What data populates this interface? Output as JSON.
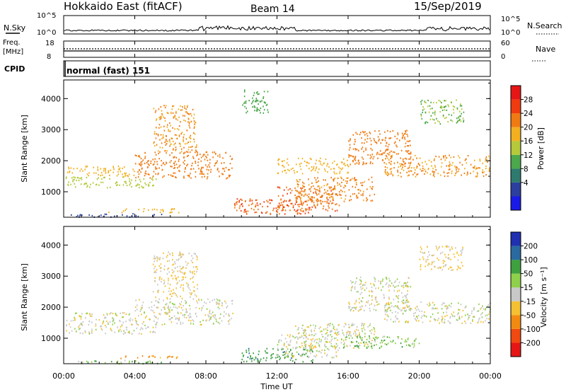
{
  "header": {
    "station": "Hokkaido East (fitACF)",
    "beam": "Beam 14",
    "date": "15/Sep/2019"
  },
  "nsky_panel": {
    "label": "N.Sky",
    "right_label": "N.Search",
    "left_ticks": [
      "10^5",
      "10^0"
    ],
    "right_ticks": [
      "10^5",
      "10^0"
    ]
  },
  "freq_panel": {
    "label_top": "Freq.",
    "label_unit": "[MHz]",
    "left_ticks": [
      "18",
      "8"
    ],
    "right_ticks": [
      "60",
      "0"
    ],
    "right_label": "Nave"
  },
  "cpid_panel": {
    "label": "CPID",
    "mode_text": "normal (fast) 151"
  },
  "power_panel": {
    "ylabel": "Slant Range [km]",
    "colorbar_label": "Power [dB]",
    "colorbar_ticks": [
      "28",
      "24",
      "20",
      "16",
      "12",
      "8",
      "4"
    ]
  },
  "velocity_panel": {
    "ylabel": "Slant Range [km]",
    "colorbar_label": "Velocity [m s⁻¹]",
    "colorbar_ticks": [
      "200",
      "100",
      "50",
      "15",
      "-15",
      "-50",
      "-100",
      "-200"
    ]
  },
  "x_axis": {
    "ticks": [
      "00:00",
      "04:00",
      "08:00",
      "12:00",
      "16:00",
      "20:00",
      "00:00"
    ],
    "label": "Time UT"
  },
  "chart_data": [
    {
      "type": "heatmap",
      "name_of_panel": "power",
      "xlim": [
        0,
        24
      ],
      "ylim": [
        180,
        4600
      ],
      "yticks": [
        1000,
        2000,
        3000,
        4000
      ],
      "colorscale": {
        "bounds": [
          0,
          4,
          8,
          12,
          16,
          20,
          24,
          28,
          32
        ],
        "colors": [
          "#1a1ae6",
          "#2c3f9e",
          "#2f7a6e",
          "#4ca84c",
          "#b5c93a",
          "#f2b020",
          "#f07a12",
          "#f03a10",
          "#e61616"
        ]
      },
      "regions": [
        {
          "x0": 0.1,
          "x1": 5.5,
          "y0": 200,
          "y1": 320,
          "value": 6
        },
        {
          "x0": 2.5,
          "x1": 6.5,
          "y0": 350,
          "y1": 480,
          "value": 22
        },
        {
          "x0": 0.1,
          "x1": 5.2,
          "y0": 1150,
          "y1": 1500,
          "value": 18
        },
        {
          "x0": 0.1,
          "x1": 4.0,
          "y0": 1500,
          "y1": 1850,
          "value": 22
        },
        {
          "x0": 4.0,
          "x1": 9.5,
          "y0": 1450,
          "y1": 2300,
          "value": 26
        },
        {
          "x0": 5.0,
          "x1": 7.5,
          "y0": 2300,
          "y1": 3800,
          "value": 24
        },
        {
          "x0": 9.5,
          "x1": 14.0,
          "y0": 300,
          "y1": 800,
          "value": 28
        },
        {
          "x0": 12.0,
          "x1": 15.5,
          "y0": 400,
          "y1": 1200,
          "value": 27
        },
        {
          "x0": 13.0,
          "x1": 17.5,
          "y0": 700,
          "y1": 1500,
          "value": 25
        },
        {
          "x0": 12.0,
          "x1": 16.0,
          "y0": 1600,
          "y1": 2100,
          "value": 22
        },
        {
          "x0": 16.0,
          "x1": 19.5,
          "y0": 1900,
          "y1": 3000,
          "value": 26
        },
        {
          "x0": 18.0,
          "x1": 24.0,
          "y0": 1500,
          "y1": 2200,
          "value": 24
        },
        {
          "x0": 10.0,
          "x1": 11.5,
          "y0": 3500,
          "y1": 4300,
          "value": 14
        },
        {
          "x0": 20.0,
          "x1": 22.5,
          "y0": 3200,
          "y1": 4000,
          "value": 16
        }
      ]
    },
    {
      "type": "heatmap",
      "name_of_panel": "velocity",
      "xlim": [
        0,
        24
      ],
      "ylim": [
        180,
        4600
      ],
      "yticks": [
        1000,
        2000,
        3000,
        4000
      ],
      "colorscale": {
        "bounds": [
          -250,
          -200,
          -100,
          -50,
          -15,
          15,
          50,
          100,
          200,
          250
        ],
        "colors": [
          "#e61616",
          "#f04a10",
          "#f28a12",
          "#f5c032",
          "#c8c8c8",
          "#8fd04a",
          "#3fa040",
          "#2a6aa0",
          "#2030b0"
        ]
      },
      "regions": [
        {
          "x0": 0.1,
          "x1": 5.5,
          "y0": 200,
          "y1": 320,
          "value": 40
        },
        {
          "x0": 3.0,
          "x1": 6.5,
          "y0": 370,
          "y1": 460,
          "value": -70
        },
        {
          "x0": 0.1,
          "x1": 5.2,
          "y0": 1150,
          "y1": 1500,
          "value": 0
        },
        {
          "x0": 0.1,
          "x1": 4.0,
          "y0": 1500,
          "y1": 1850,
          "value": 0
        },
        {
          "x0": 4.0,
          "x1": 9.5,
          "y0": 1450,
          "y1": 2300,
          "value": 0
        },
        {
          "x0": 5.0,
          "x1": 7.5,
          "y0": 2300,
          "y1": 3800,
          "value": -20
        },
        {
          "x0": 10.0,
          "x1": 14.0,
          "y0": 250,
          "y1": 700,
          "value": 80
        },
        {
          "x0": 12.0,
          "x1": 15.5,
          "y0": 400,
          "y1": 1200,
          "value": 0
        },
        {
          "x0": 13.0,
          "x1": 17.5,
          "y0": 700,
          "y1": 1500,
          "value": 0
        },
        {
          "x0": 15.5,
          "x1": 20.0,
          "y0": 700,
          "y1": 1100,
          "value": 40
        },
        {
          "x0": 16.0,
          "x1": 19.5,
          "y0": 1900,
          "y1": 3000,
          "value": 0
        },
        {
          "x0": 18.0,
          "x1": 24.0,
          "y0": 1500,
          "y1": 2200,
          "value": 0
        },
        {
          "x0": 20.0,
          "x1": 22.5,
          "y0": 3200,
          "y1": 4000,
          "value": -20
        }
      ]
    }
  ]
}
